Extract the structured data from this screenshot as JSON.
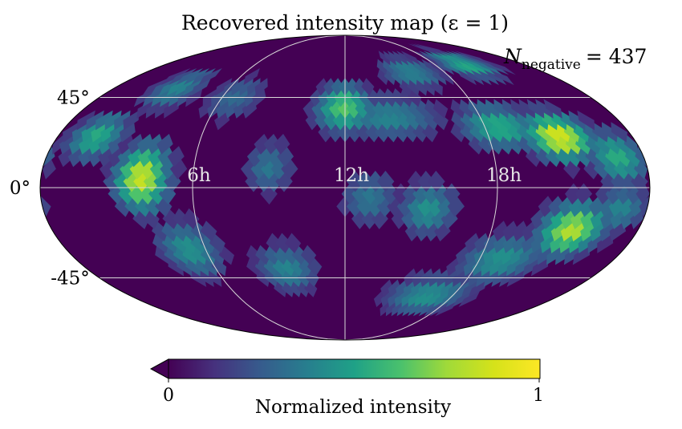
{
  "chart_data": {
    "type": "heatmap",
    "projection": "mollweide",
    "title": "Recovered intensity map (ε = 1)",
    "annotation": {
      "symbol": "N",
      "subscript": "negative",
      "relation": "= 437",
      "value": 437
    },
    "ra_tick_labels": [
      "18h",
      "12h",
      "6h"
    ],
    "dec_tick_labels": [
      "45°",
      "0°",
      "-45°"
    ],
    "dec_grid_degrees": [
      45,
      0,
      -45
    ],
    "ra_grid_offsets_hours": [
      -6,
      0,
      6
    ],
    "colorbar": {
      "label": "Normalized intensity",
      "min": 0,
      "max": 1,
      "tick_labels": [
        "0",
        "1"
      ],
      "extend": "min",
      "colormap": "viridis"
    },
    "hotspots": [
      {
        "lon": -155,
        "lat": 25,
        "amp": 0.55,
        "sx": 12,
        "sy": 8
      },
      {
        "lon": -120,
        "lat": 5,
        "amp": 0.85,
        "sx": 11,
        "sy": 11
      },
      {
        "lon": -100,
        "lat": -30,
        "amp": 0.45,
        "sx": 14,
        "sy": 10
      },
      {
        "lon": -130,
        "lat": 50,
        "amp": 0.4,
        "sx": 14,
        "sy": 8
      },
      {
        "lon": -80,
        "lat": 45,
        "amp": 0.3,
        "sx": 15,
        "sy": 9
      },
      {
        "lon": -45,
        "lat": 10,
        "amp": 0.35,
        "sx": 10,
        "sy": 9
      },
      {
        "lon": -40,
        "lat": -40,
        "amp": 0.4,
        "sx": 15,
        "sy": 9
      },
      {
        "lon": 0,
        "lat": 40,
        "amp": 0.65,
        "sx": 14,
        "sy": 9
      },
      {
        "lon": 30,
        "lat": 35,
        "amp": 0.4,
        "sx": 25,
        "sy": 8
      },
      {
        "lon": 60,
        "lat": 60,
        "amp": 0.4,
        "sx": 20,
        "sy": 7
      },
      {
        "lon": 120,
        "lat": 65,
        "amp": 0.55,
        "sx": 18,
        "sy": 6
      },
      {
        "lon": 100,
        "lat": 30,
        "amp": 0.55,
        "sx": 18,
        "sy": 8
      },
      {
        "lon": 135,
        "lat": 25,
        "amp": 0.9,
        "sx": 14,
        "sy": 8
      },
      {
        "lon": 165,
        "lat": 15,
        "amp": 0.55,
        "sx": 12,
        "sy": 9
      },
      {
        "lon": 15,
        "lat": -5,
        "amp": 0.35,
        "sx": 12,
        "sy": 9
      },
      {
        "lon": 50,
        "lat": -10,
        "amp": 0.45,
        "sx": 12,
        "sy": 9
      },
      {
        "lon": 70,
        "lat": -55,
        "amp": 0.45,
        "sx": 25,
        "sy": 8
      },
      {
        "lon": 105,
        "lat": -35,
        "amp": 0.45,
        "sx": 20,
        "sy": 9
      },
      {
        "lon": 140,
        "lat": -20,
        "amp": 0.8,
        "sx": 14,
        "sy": 9
      },
      {
        "lon": 165,
        "lat": -10,
        "amp": 0.4,
        "sx": 12,
        "sy": 8
      }
    ]
  }
}
